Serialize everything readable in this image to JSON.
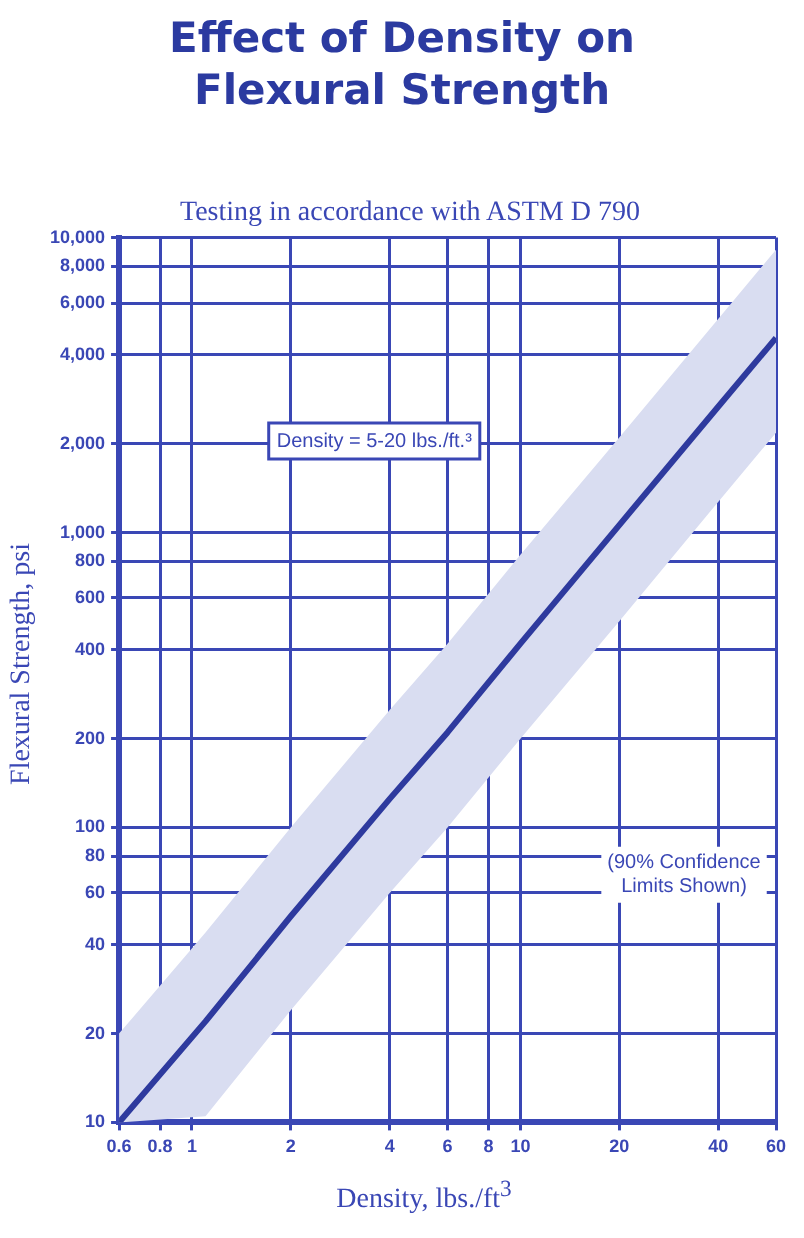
{
  "chart_data": {
    "type": "line",
    "title": "Effect of Density on Flexural Strength",
    "subtitle": "Testing in accordance with ASTM D 790",
    "xlabel": "Density, lbs./ft$^{3}$",
    "ylabel": "Flexural Strength, psi",
    "annotations": [
      "Density = 5-20 lbs./ft.³",
      "(90% Confidence Limits Shown)"
    ],
    "x": [
      0.6,
      1.1,
      2,
      4,
      6,
      10,
      20,
      40,
      60
    ],
    "series": [
      {
        "color": "#2e3a9e",
        "values": [
          10,
          22,
          50,
          125,
          210,
          420,
          1060,
          2670,
          4570
        ],
        "upper": [
          20,
          44,
          100,
          250,
          420,
          840,
          2100,
          5300,
          9100
        ],
        "lower": [
          10,
          10.5,
          24,
          60,
          100,
          200,
          500,
          1270,
          2180
        ]
      }
    ],
    "log": "xy",
    "xlim": [
      0.6,
      60
    ],
    "ylim": [
      10,
      10000
    ],
    "xticks": [
      0.6,
      0.8,
      1,
      2,
      4,
      6,
      8,
      10,
      20,
      40,
      60
    ],
    "yticks": [
      10,
      20,
      40,
      60,
      80,
      100,
      200,
      400,
      600,
      800,
      {
        "value": 1000,
        "label": "1,000"
      },
      {
        "value": 2000,
        "label": "2,000"
      },
      {
        "value": 4000,
        "label": "4,000"
      },
      {
        "value": 6000,
        "label": "6,000"
      },
      {
        "value": 8000,
        "label": "8,000"
      },
      {
        "value": 10000,
        "label": "10,000"
      }
    ],
    "grid": true,
    "legend": false,
    "marker": "none",
    "line_style": "solid"
  }
}
